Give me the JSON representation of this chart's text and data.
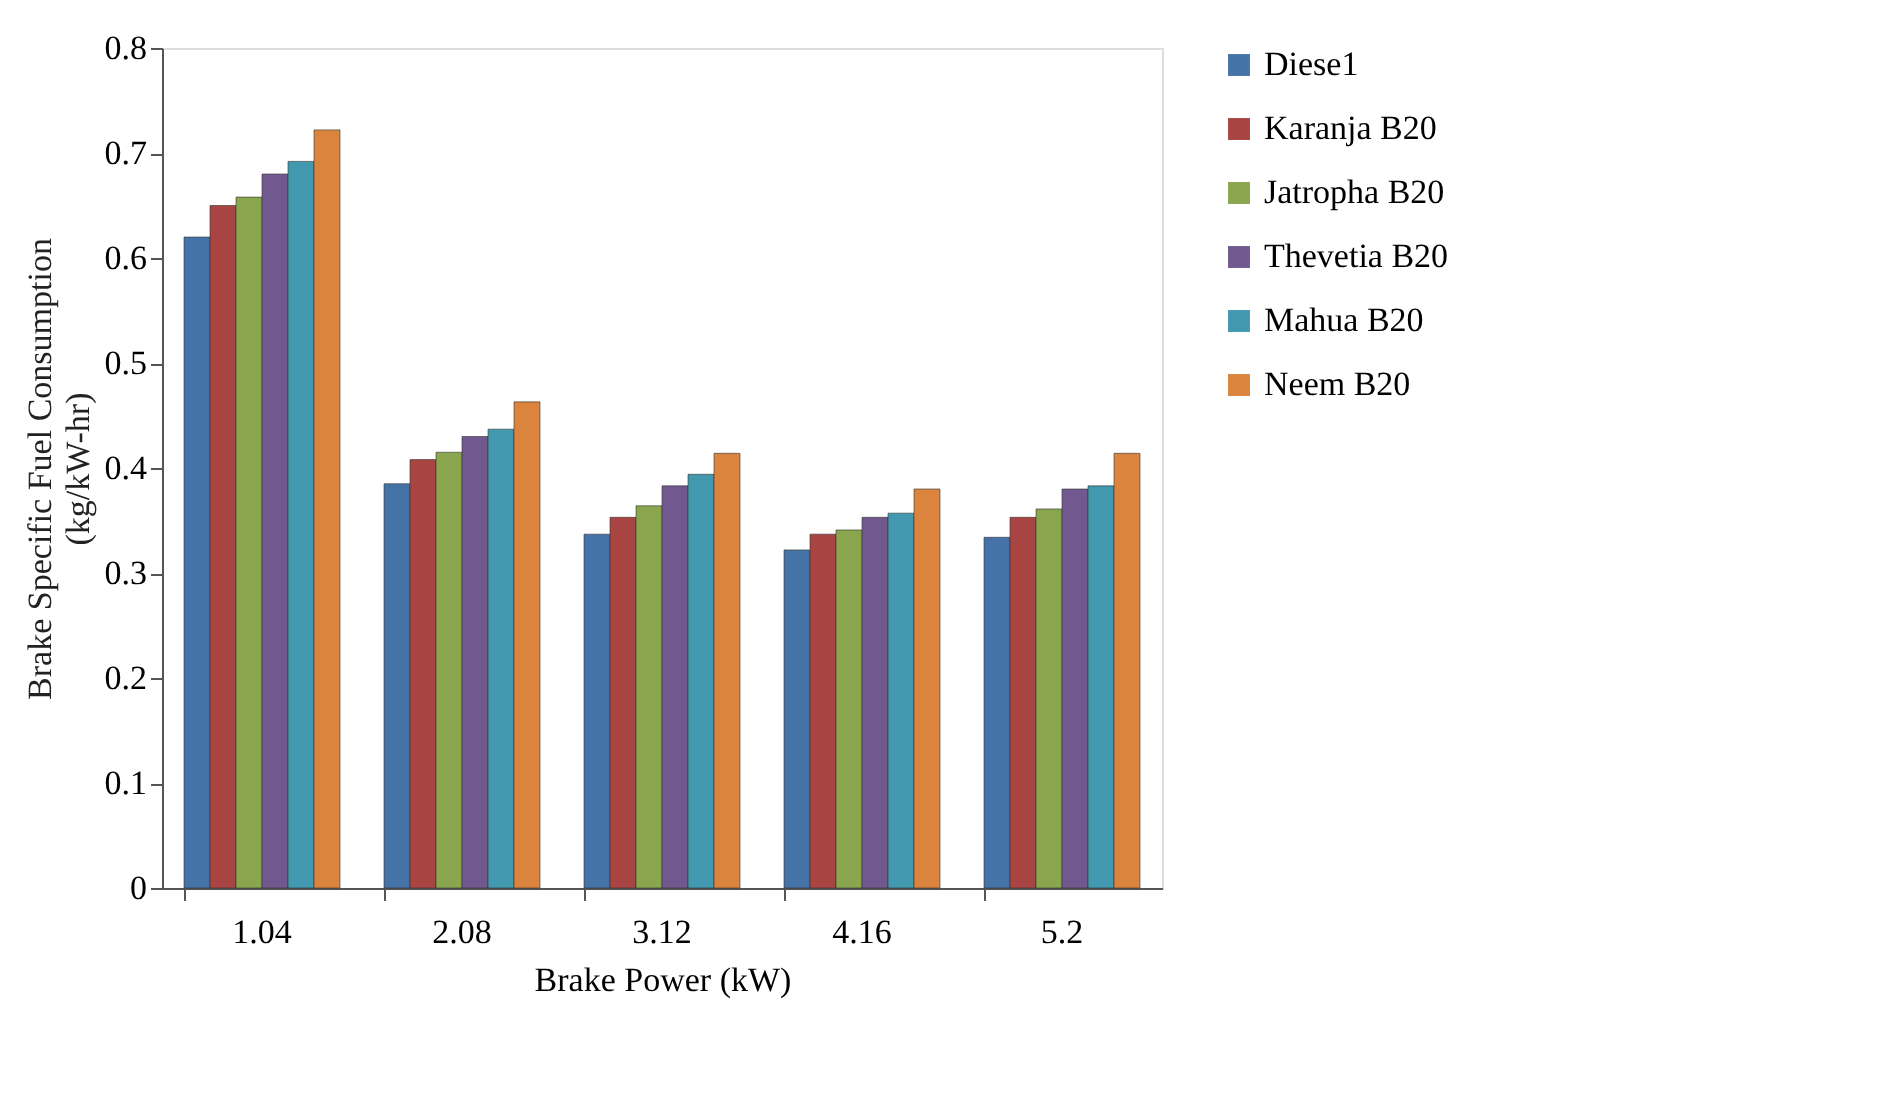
{
  "chart_data": {
    "type": "bar",
    "xlabel": "Brake Power (kW)",
    "ylabel": "Brake Specific Fuel Consumption (kg/kW-hr)",
    "categories": [
      "1.04",
      "2.08",
      "3.12",
      "4.16",
      "5.2"
    ],
    "series": [
      {
        "name": "Diese1",
        "color": "#4573a7",
        "values": [
          0.62,
          0.385,
          0.337,
          0.322,
          0.334
        ]
      },
      {
        "name": "Karanja B20",
        "color": "#a84543",
        "values": [
          0.65,
          0.408,
          0.353,
          0.337,
          0.353
        ]
      },
      {
        "name": "Jatropha B20",
        "color": "#89a54e",
        "values": [
          0.658,
          0.415,
          0.364,
          0.341,
          0.361
        ]
      },
      {
        "name": "Thevetia B20",
        "color": "#71588f",
        "values": [
          0.68,
          0.43,
          0.383,
          0.353,
          0.38
        ]
      },
      {
        "name": "Mahua B20",
        "color": "#4298af",
        "values": [
          0.692,
          0.437,
          0.394,
          0.357,
          0.383
        ]
      },
      {
        "name": "Neem B20",
        "color": "#db843d",
        "values": [
          0.722,
          0.463,
          0.414,
          0.38,
          0.414
        ]
      }
    ],
    "ylim": [
      0,
      0.8
    ],
    "yticks": [
      0,
      0.1,
      0.2,
      0.3,
      0.4,
      0.5,
      0.6,
      0.7,
      0.8
    ],
    "grid": false,
    "legend": "right"
  }
}
